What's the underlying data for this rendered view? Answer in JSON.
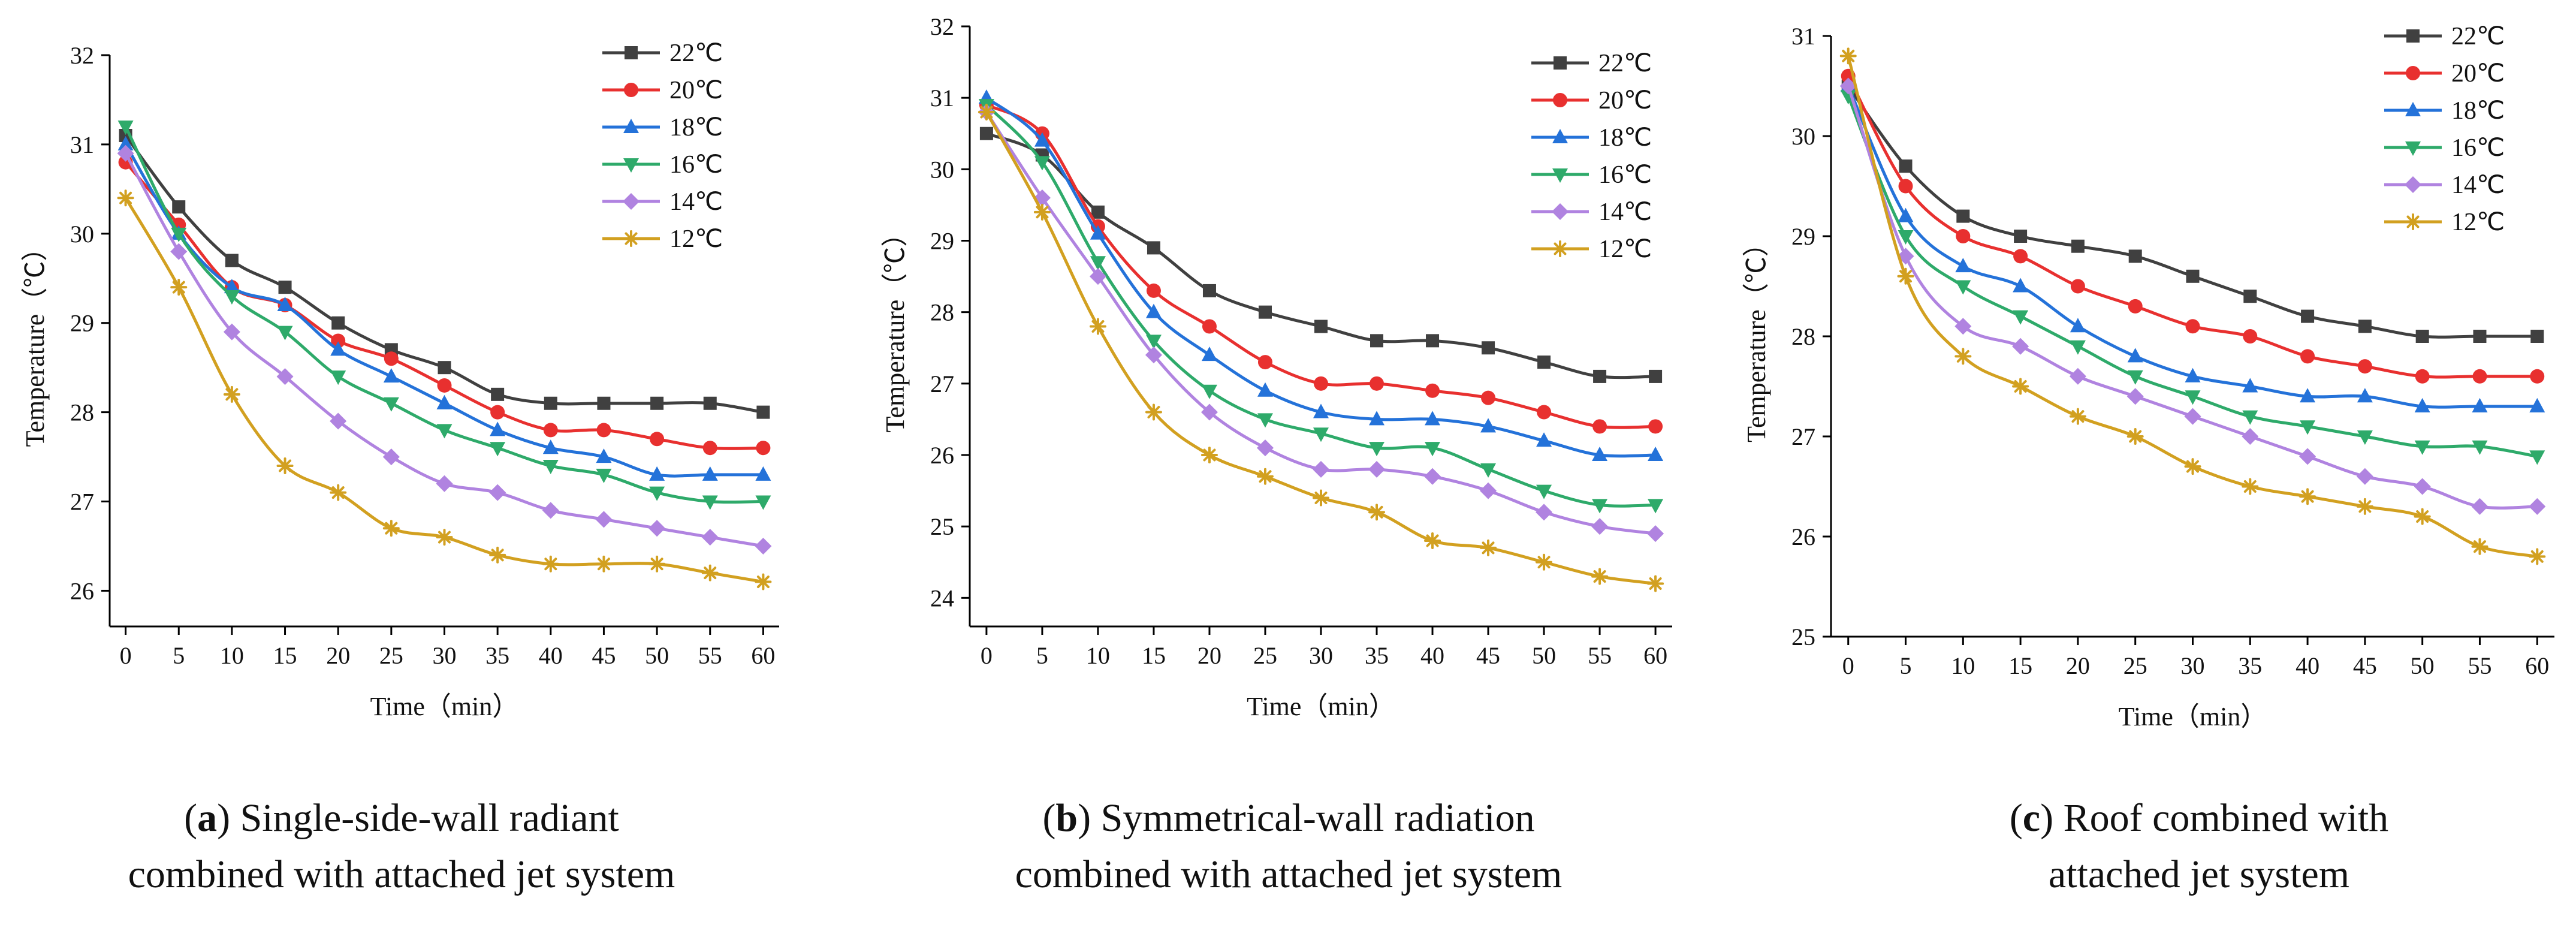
{
  "figure": {
    "panels": [
      {
        "caption": {
          "letter": "a",
          "open": "(",
          "close": ")",
          "line1": " Single-side-wall radiant",
          "line2": "combined with attached jet system"
        }
      },
      {
        "caption": {
          "letter": "b",
          "open": "(",
          "close": ")",
          "line1": " Symmetrical-wall radiation",
          "line2": "combined with attached jet system"
        }
      },
      {
        "caption": {
          "letter": "c",
          "open": "(",
          "close": ")",
          "line1": " Roof combined with",
          "line2": "attached jet system"
        }
      }
    ]
  },
  "chart_data": [
    {
      "type": "line",
      "title": "",
      "xlabel": "Time（min）",
      "ylabel": "Temperature（℃）",
      "x": [
        0,
        5,
        10,
        15,
        20,
        25,
        30,
        35,
        40,
        45,
        50,
        55,
        60
      ],
      "xlim": [
        -1.5,
        61.5
      ],
      "ylim": [
        25.6,
        32
      ],
      "yticks": [
        26,
        27,
        28,
        29,
        30,
        31,
        32
      ],
      "legend_position": "top-right",
      "series": [
        {
          "name": "22℃",
          "color": "#404040",
          "marker": "square",
          "values": [
            31.1,
            30.3,
            29.7,
            29.4,
            29.0,
            28.7,
            28.5,
            28.2,
            28.1,
            28.1,
            28.1,
            28.1,
            28.0
          ]
        },
        {
          "name": "20℃",
          "color": "#e8302f",
          "marker": "circle",
          "values": [
            30.8,
            30.1,
            29.4,
            29.2,
            28.8,
            28.6,
            28.3,
            28.0,
            27.8,
            27.8,
            27.7,
            27.6,
            27.6
          ]
        },
        {
          "name": "18℃",
          "color": "#2472d9",
          "marker": "triangle-up",
          "values": [
            31.0,
            30.0,
            29.4,
            29.2,
            28.7,
            28.4,
            28.1,
            27.8,
            27.6,
            27.5,
            27.3,
            27.3,
            27.3
          ]
        },
        {
          "name": "16℃",
          "color": "#2eaa6a",
          "marker": "triangle-down",
          "values": [
            31.2,
            30.0,
            29.3,
            28.9,
            28.4,
            28.1,
            27.8,
            27.6,
            27.4,
            27.3,
            27.1,
            27.0,
            27.0
          ]
        },
        {
          "name": "14℃",
          "color": "#b083e0",
          "marker": "diamond",
          "values": [
            30.9,
            29.8,
            28.9,
            28.4,
            27.9,
            27.5,
            27.2,
            27.1,
            26.9,
            26.8,
            26.7,
            26.6,
            26.5
          ]
        },
        {
          "name": "12℃",
          "color": "#d2a020",
          "marker": "star",
          "values": [
            30.4,
            29.4,
            28.2,
            27.4,
            27.1,
            26.7,
            26.6,
            26.4,
            26.3,
            26.3,
            26.3,
            26.2,
            26.1
          ]
        }
      ]
    },
    {
      "type": "line",
      "title": "",
      "xlabel": "Time（min）",
      "ylabel": "Temperature（℃）",
      "x": [
        0,
        5,
        10,
        15,
        20,
        25,
        30,
        35,
        40,
        45,
        50,
        55,
        60
      ],
      "xlim": [
        -1.5,
        61.5
      ],
      "ylim": [
        23.6,
        32
      ],
      "yticks": [
        24,
        25,
        26,
        27,
        28,
        29,
        30,
        31,
        32
      ],
      "legend_position": "top-right",
      "series": [
        {
          "name": "22℃",
          "color": "#404040",
          "marker": "square",
          "values": [
            30.5,
            30.2,
            29.4,
            28.9,
            28.3,
            28.0,
            27.8,
            27.6,
            27.6,
            27.5,
            27.3,
            27.1,
            27.1
          ]
        },
        {
          "name": "20℃",
          "color": "#e8302f",
          "marker": "circle",
          "values": [
            30.9,
            30.5,
            29.2,
            28.3,
            27.8,
            27.3,
            27.0,
            27.0,
            26.9,
            26.8,
            26.6,
            26.4,
            26.4
          ]
        },
        {
          "name": "18℃",
          "color": "#2472d9",
          "marker": "triangle-up",
          "values": [
            31.0,
            30.4,
            29.1,
            28.0,
            27.4,
            26.9,
            26.6,
            26.5,
            26.5,
            26.4,
            26.2,
            26.0,
            26.0
          ]
        },
        {
          "name": "16℃",
          "color": "#2eaa6a",
          "marker": "triangle-down",
          "values": [
            30.9,
            30.1,
            28.7,
            27.6,
            26.9,
            26.5,
            26.3,
            26.1,
            26.1,
            25.8,
            25.5,
            25.3,
            25.3
          ]
        },
        {
          "name": "14℃",
          "color": "#b083e0",
          "marker": "diamond",
          "values": [
            30.8,
            29.6,
            28.5,
            27.4,
            26.6,
            26.1,
            25.8,
            25.8,
            25.7,
            25.5,
            25.2,
            25.0,
            24.9
          ]
        },
        {
          "name": "12℃",
          "color": "#d2a020",
          "marker": "star",
          "values": [
            30.8,
            29.4,
            27.8,
            26.6,
            26.0,
            25.7,
            25.4,
            25.2,
            24.8,
            24.7,
            24.5,
            24.3,
            24.2
          ]
        }
      ]
    },
    {
      "type": "line",
      "title": "",
      "xlabel": "Time（min）",
      "ylabel": "Temperature（℃）",
      "x": [
        0,
        5,
        10,
        15,
        20,
        25,
        30,
        35,
        40,
        45,
        50,
        55,
        60
      ],
      "xlim": [
        -1.5,
        61.5
      ],
      "ylim": [
        25,
        31
      ],
      "yticks": [
        25,
        26,
        27,
        28,
        29,
        30,
        31
      ],
      "legend_position": "top-right",
      "series": [
        {
          "name": "22℃",
          "color": "#404040",
          "marker": "square",
          "values": [
            30.5,
            29.7,
            29.2,
            29.0,
            28.9,
            28.8,
            28.6,
            28.4,
            28.2,
            28.1,
            28.0,
            28.0,
            28.0
          ]
        },
        {
          "name": "20℃",
          "color": "#e8302f",
          "marker": "circle",
          "values": [
            30.6,
            29.5,
            29.0,
            28.8,
            28.5,
            28.3,
            28.1,
            28.0,
            27.8,
            27.7,
            27.6,
            27.6,
            27.6
          ]
        },
        {
          "name": "18℃",
          "color": "#2472d9",
          "marker": "triangle-up",
          "values": [
            30.5,
            29.2,
            28.7,
            28.5,
            28.1,
            27.8,
            27.6,
            27.5,
            27.4,
            27.4,
            27.3,
            27.3,
            27.3
          ]
        },
        {
          "name": "16℃",
          "color": "#2eaa6a",
          "marker": "triangle-down",
          "values": [
            30.4,
            29.0,
            28.5,
            28.2,
            27.9,
            27.6,
            27.4,
            27.2,
            27.1,
            27.0,
            26.9,
            26.9,
            26.8
          ]
        },
        {
          "name": "14℃",
          "color": "#b083e0",
          "marker": "diamond",
          "values": [
            30.5,
            28.8,
            28.1,
            27.9,
            27.6,
            27.4,
            27.2,
            27.0,
            26.8,
            26.6,
            26.5,
            26.3,
            26.3
          ]
        },
        {
          "name": "12℃",
          "color": "#d2a020",
          "marker": "star",
          "values": [
            30.8,
            28.6,
            27.8,
            27.5,
            27.2,
            27.0,
            26.7,
            26.5,
            26.4,
            26.3,
            26.2,
            25.9,
            25.8
          ]
        }
      ]
    }
  ]
}
